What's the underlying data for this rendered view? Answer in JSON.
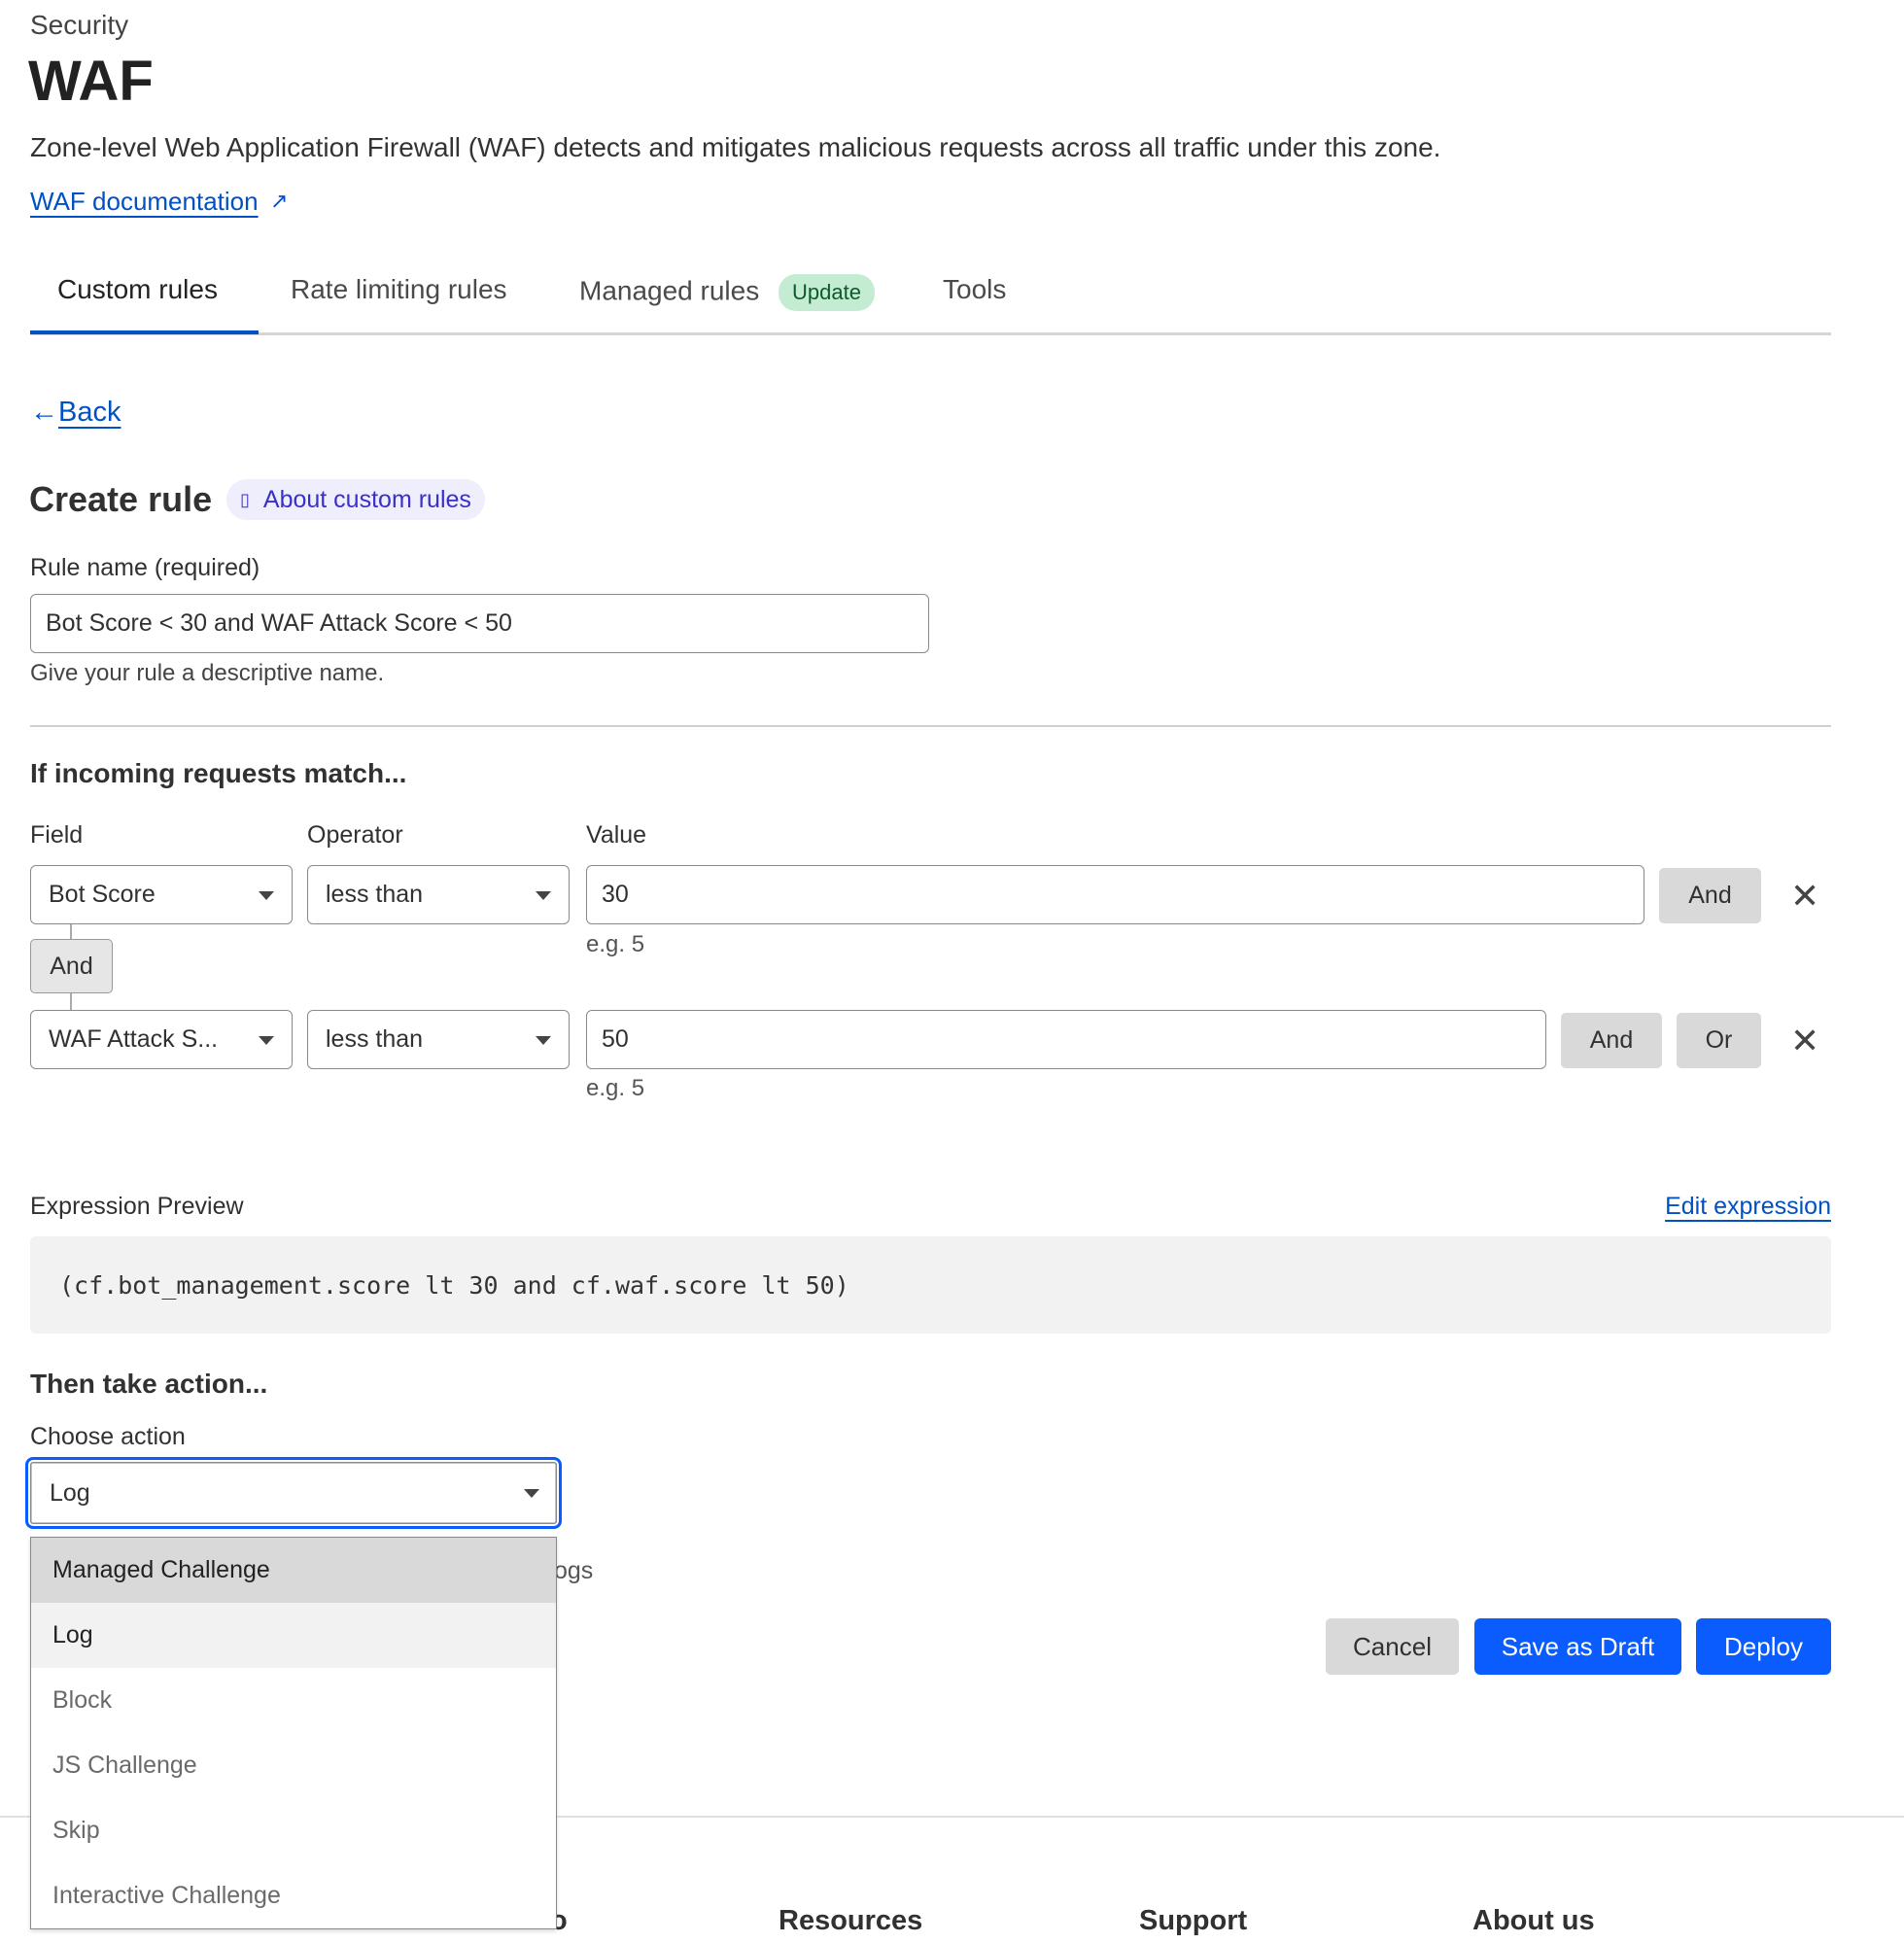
{
  "header": {
    "section": "Security",
    "title": "WAF",
    "description": "Zone-level Web Application Firewall (WAF) detects and mitigates malicious requests across all traffic under this zone.",
    "doc_link": "WAF documentation"
  },
  "tabs": [
    {
      "label": "Custom rules",
      "active": true
    },
    {
      "label": "Rate limiting rules"
    },
    {
      "label": "Managed rules",
      "badge": "Update"
    },
    {
      "label": "Tools"
    }
  ],
  "back": "Back",
  "form": {
    "title": "Create rule",
    "about_link": "About custom rules",
    "rule_name_label": "Rule name (required)",
    "rule_name_value": "Bot Score < 30 and WAF Attack Score < 50",
    "rule_name_help": "Give your rule a descriptive name.",
    "match_heading": "If incoming requests match...",
    "field_label": "Field",
    "operator_label": "Operator",
    "value_label": "Value",
    "conditions": [
      {
        "field": "Bot Score",
        "operator": "less than",
        "value": "30",
        "hint": "e.g. 5",
        "buttons": [
          "And"
        ]
      },
      {
        "field": "WAF Attack S...",
        "operator": "less than",
        "value": "50",
        "hint": "e.g. 5",
        "buttons": [
          "And",
          "Or"
        ]
      }
    ],
    "connector": "And",
    "expression_label": "Expression Preview",
    "edit_expression": "Edit expression",
    "expression": "(cf.bot_management.score lt 30 and cf.waf.score lt 50)",
    "action_heading": "Then take action...",
    "action_label": "Choose action",
    "action_value": "Log",
    "action_help_partial": "ogs",
    "action_options": [
      "Managed Challenge",
      "Log",
      "Block",
      "JS Challenge",
      "Skip",
      "Interactive Challenge"
    ],
    "hovered_option": "Managed Challenge",
    "cancel": "Cancel",
    "save_draft": "Save as Draft",
    "deploy": "Deploy"
  },
  "footer": {
    "partial": "o",
    "headings": [
      "Resources",
      "Support",
      "About us"
    ]
  },
  "colors": {
    "link": "#0051c3",
    "primary": "#0a5cff",
    "badge_bg": "#c4ecd3",
    "badge_text": "#0d5a2b"
  }
}
